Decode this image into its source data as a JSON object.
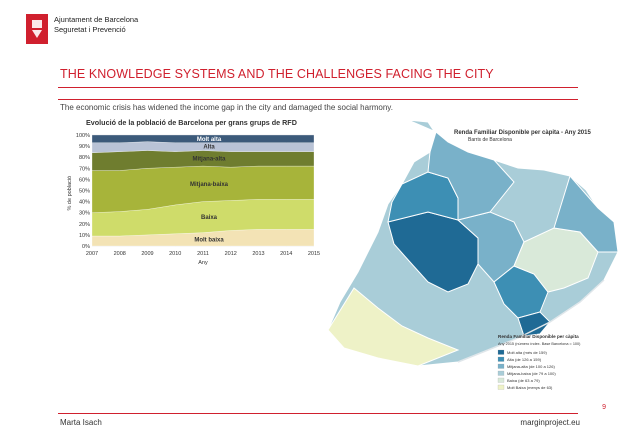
{
  "header": {
    "org_line1": "Ajuntament de Barcelona",
    "org_line2": "Seguretat i Prevenció",
    "title": "THE KNOWLEDGE SYSTEMS AND THE CHALLENGES FACING THE CITY",
    "subtitle": "The economic crisis has widened the income gap in the city and damaged the social harmony."
  },
  "footer": {
    "author": "Marta Isach",
    "site": "marginproject.eu",
    "page": "9"
  },
  "colors": {
    "accent": "#d0202e",
    "molt_alta": "#3c5a7a",
    "alta": "#b9c3d6",
    "mitjana_alta": "#6f7d2f",
    "mitjana_baixa": "#a7b43a",
    "baixa": "#cfdc6a",
    "molt_baixa": "#f3e3b5"
  },
  "chart_data": {
    "type": "area",
    "title": "Evolució de la població de Barcelona per grans grups de RFD",
    "xlabel": "Any",
    "ylabel": "% de població",
    "categories": [
      "2007",
      "2008",
      "2009",
      "2010",
      "2011",
      "2012",
      "2013",
      "2014",
      "2015"
    ],
    "ylim": [
      0,
      100
    ],
    "yticks": [
      "0%",
      "10%",
      "20%",
      "30%",
      "40%",
      "50%",
      "60%",
      "70%",
      "80%",
      "90%",
      "100%"
    ],
    "stacked": true,
    "series": [
      {
        "name": "Molt baixa",
        "values": [
          9,
          9,
          10,
          11,
          12,
          14,
          15,
          15,
          15
        ]
      },
      {
        "name": "Baixa",
        "values": [
          21,
          22,
          23,
          26,
          28,
          27,
          27,
          27,
          27
        ]
      },
      {
        "name": "Mitjana-baixa",
        "values": [
          38,
          37,
          37,
          34,
          32,
          30,
          30,
          30,
          30
        ]
      },
      {
        "name": "Mitjana-alta",
        "values": [
          16,
          17,
          16,
          14,
          14,
          14,
          13,
          13,
          13
        ]
      },
      {
        "name": "Alta",
        "values": [
          9,
          8,
          8,
          8,
          7,
          8,
          8,
          8,
          8
        ]
      },
      {
        "name": "Molt alta",
        "values": [
          7,
          7,
          6,
          7,
          7,
          7,
          7,
          7,
          7
        ]
      }
    ],
    "grid": true
  },
  "map": {
    "title": "Renda Familiar Disponible per càpita - Any 2015",
    "subtitle": "Barris de Barcelona",
    "legend_title": "Renda Familiar Disponible per càpita",
    "legend_sub": "Any 2015 (número índex. Base Barcelona = 100)",
    "legend": [
      {
        "label": "Molt alta (més de 159)",
        "color": "#1f6a95"
      },
      {
        "label": "Alta (de 126 a 159)",
        "color": "#3d8fb4"
      },
      {
        "label": "Mitjana-alta (de 100 a 126)",
        "color": "#79b1c9"
      },
      {
        "label": "Mitjana-baixa (de 79 a 100)",
        "color": "#a9cdd8"
      },
      {
        "label": "Baixa (de 63 a 79)",
        "color": "#d9e9d9"
      },
      {
        "label": "Molt Baixa (menys de 63)",
        "color": "#eef2c7"
      }
    ]
  }
}
